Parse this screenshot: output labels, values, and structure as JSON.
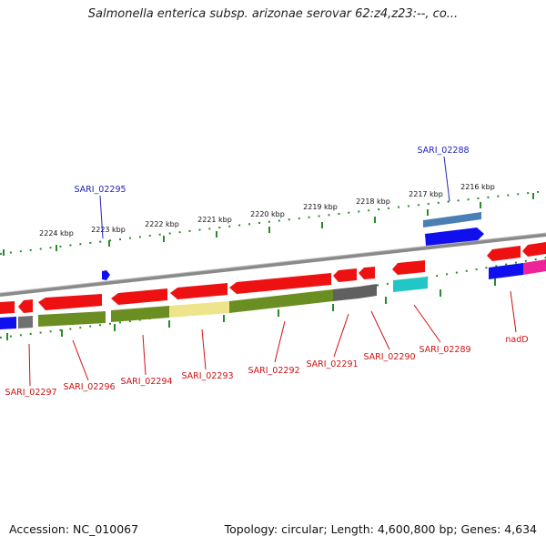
{
  "title": "Salmonella enterica subsp. arizonae serovar 62:z4,z23:--, co...",
  "footer": {
    "accession": "Accession: NC_010067",
    "summary": "Topology: circular; Length: 4,600,800 bp; Genes: 4,634"
  },
  "colors": {
    "background": "#ffffff",
    "tick": "#2a8a2a",
    "backbone": "#808080",
    "forward_label": "#2222bb",
    "reverse_label": "#cc1111"
  },
  "scale_ticks": [
    {
      "label": "2224 kbp"
    },
    {
      "label": "2223 kbp"
    },
    {
      "label": "2222 kbp"
    },
    {
      "label": "2221 kbp"
    },
    {
      "label": "2220 kbp"
    },
    {
      "label": "2219 kbp"
    },
    {
      "label": "2218 kbp"
    },
    {
      "label": "2217 kbp"
    },
    {
      "label": "2216 kbp"
    }
  ],
  "forward_genes": [
    {
      "name": "SARI_02295",
      "color": "#1010ee"
    },
    {
      "name": "SARI_02288",
      "color": "#1010ee"
    }
  ],
  "reverse_genes": [
    {
      "name": "SARI_02297",
      "color": "#cc1111"
    },
    {
      "name": "SARI_02296",
      "color": "#cc1111"
    },
    {
      "name": "SARI_02294",
      "color": "#cc1111"
    },
    {
      "name": "SARI_02293",
      "color": "#cc1111"
    },
    {
      "name": "SARI_02292",
      "color": "#cc1111"
    },
    {
      "name": "SARI_02291",
      "color": "#cc1111"
    },
    {
      "name": "SARI_02290",
      "color": "#cc1111"
    },
    {
      "name": "SARI_02289",
      "color": "#cc1111"
    },
    {
      "name": "nadD",
      "color": "#cc1111"
    }
  ]
}
